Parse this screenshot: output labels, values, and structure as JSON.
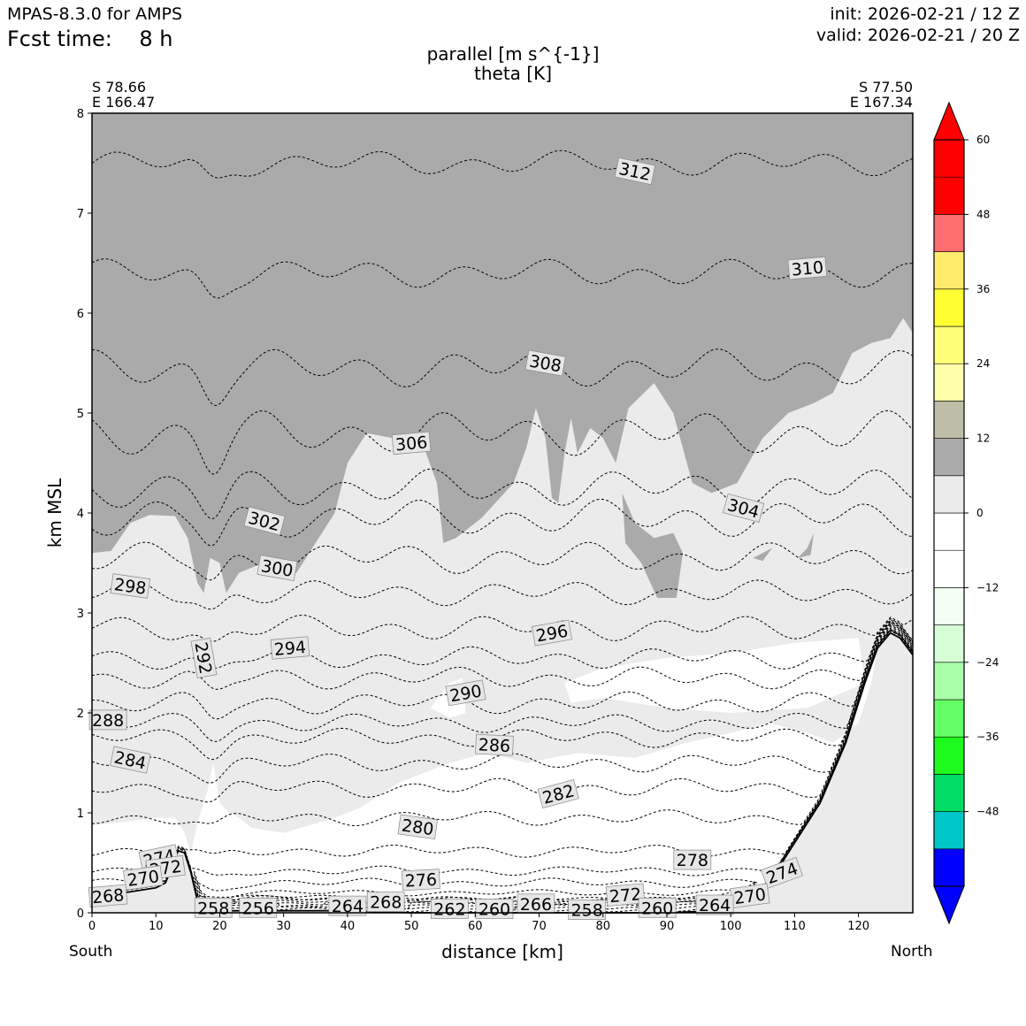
{
  "header": {
    "model": "MPAS-8.3.0 for AMPS",
    "fcst_time": "Fcst time:    8 h",
    "init": "init: 2026-02-21 / 12 Z",
    "valid": "valid: 2026-02-21 / 20 Z"
  },
  "chart_data": {
    "type": "contour",
    "title": "parallel [m s^{-1}]",
    "subtitle": "theta [K]",
    "xlabel": "distance [km]",
    "ylabel": "km MSL",
    "xlim": [
      0,
      128.5
    ],
    "ylim": [
      0,
      8
    ],
    "x_ticks": [
      0,
      10,
      20,
      30,
      40,
      50,
      60,
      70,
      80,
      90,
      100,
      110,
      120
    ],
    "y_ticks": [
      0,
      1,
      2,
      3,
      4,
      5,
      6,
      7,
      8
    ],
    "left_end": {
      "lat": "S 78.66",
      "lon": "E 166.47",
      "label": "South"
    },
    "right_end": {
      "lat": "S 77.50",
      "lon": "E 167.34",
      "label": "North"
    },
    "colorbar": {
      "bounds": [
        -60,
        -54,
        -48,
        -42,
        -36,
        -30,
        -24,
        -18,
        -12,
        -6,
        0,
        6,
        12,
        18,
        24,
        30,
        36,
        42,
        48,
        54,
        60
      ],
      "colors": [
        "#0000ff",
        "#00c8c8",
        "#00dc64",
        "#1efa1e",
        "#64ff64",
        "#aaffaa",
        "#d7ffd7",
        "#f3fff3",
        "#ffffff",
        "#ffffff",
        "#ebebeb",
        "#aaaaaa",
        "#bebea8",
        "#ffffaa",
        "#ffff78",
        "#ffff32",
        "#ffeb6e",
        "#ff6e6e",
        "#ff0000",
        "#ff0000"
      ],
      "extend_under": "#0000ff",
      "extend_over": "#ff0000",
      "tick_values": [
        -48,
        -36,
        -24,
        -12,
        0,
        12,
        24,
        36,
        48,
        60
      ],
      "tick_labels": [
        "−48",
        "−36",
        "−24",
        "−12",
        "0",
        "12",
        "24",
        "36",
        "48",
        "60"
      ]
    },
    "shading_colors": {
      "light": "#ebebeb",
      "dark": "#aaaaaa"
    },
    "theta_contours": [
      {
        "value": 312,
        "base": 7.5,
        "amp": 0.08,
        "label": "312",
        "lx": 85,
        "ly": 7.42,
        "rot": 12
      },
      {
        "value": 310,
        "base": 6.4,
        "amp": 0.09,
        "label": "310",
        "lx": 112,
        "ly": 6.45,
        "rot": -5
      },
      {
        "value": 308,
        "base": 5.45,
        "amp": 0.12,
        "label": "308",
        "lx": 71,
        "ly": 5.5,
        "rot": 10
      },
      {
        "value": 306,
        "base": 4.8,
        "amp": 0.14,
        "label": "306",
        "lx": 50,
        "ly": 4.7,
        "rot": -5
      },
      {
        "value": 304,
        "base": 4.25,
        "amp": 0.12,
        "label": "304",
        "lx": 102,
        "ly": 4.05,
        "rot": 15
      },
      {
        "value": 302,
        "base": 3.95,
        "amp": 0.12,
        "label": "302",
        "lx": 27,
        "ly": 3.92,
        "rot": 15
      },
      {
        "value": 300,
        "base": 3.55,
        "amp": 0.1,
        "label": "300",
        "lx": 29,
        "ly": 3.45,
        "rot": 10
      },
      {
        "value": 298,
        "base": 3.2,
        "amp": 0.08,
        "label": "298",
        "lx": 6,
        "ly": 3.27,
        "rot": 8
      },
      {
        "value": 296,
        "base": 2.85,
        "amp": 0.08,
        "label": "296",
        "lx": 72,
        "ly": 2.8,
        "rot": -10
      },
      {
        "value": 294,
        "base": 2.55,
        "amp": 0.07,
        "label": "294",
        "lx": 31,
        "ly": 2.65,
        "rot": -5
      },
      {
        "value": 292,
        "base": 2.35,
        "amp": 0.07,
        "label": "292",
        "lx": 17.5,
        "ly": 2.55,
        "rot": 80
      },
      {
        "value": 290,
        "base": 2.1,
        "amp": 0.07,
        "label": "290",
        "lx": 58.5,
        "ly": 2.2,
        "rot": -10
      },
      {
        "value": 288,
        "base": 1.9,
        "amp": 0.06,
        "label": "288",
        "lx": 2.5,
        "ly": 1.93,
        "rot": 0
      },
      {
        "value": 286,
        "base": 1.75,
        "amp": 0.06,
        "label": "286",
        "lx": 63,
        "ly": 1.68,
        "rot": 3
      },
      {
        "value": 284,
        "base": 1.5,
        "amp": 0.06,
        "label": "284",
        "lx": 6,
        "ly": 1.53,
        "rot": 12
      },
      {
        "value": 282,
        "base": 1.25,
        "amp": 0.06,
        "label": "282",
        "lx": 73,
        "ly": 1.19,
        "rot": -15
      },
      {
        "value": 280,
        "base": 0.95,
        "amp": 0.05,
        "label": "280",
        "lx": 51,
        "ly": 0.86,
        "rot": 8
      },
      {
        "value": 278,
        "base": 0.62,
        "amp": 0.04,
        "label": "278",
        "lx": 94,
        "ly": 0.53,
        "rot": 0
      },
      {
        "value": 276,
        "base": 0.42,
        "amp": 0.03,
        "label": "276",
        "lx": 51.5,
        "ly": 0.33,
        "rot": -3
      },
      {
        "value": 274,
        "base": 0.3,
        "amp": 0.03,
        "label": "274",
        "lx": 10.5,
        "ly": 0.55,
        "rot": -12
      },
      {
        "value": 272,
        "base": 0.2,
        "amp": 0.02,
        "label": "272",
        "lx": 11.5,
        "ly": 0.45,
        "rot": -8
      },
      {
        "value": 270,
        "base": 0.14,
        "amp": 0.02,
        "label": "270",
        "lx": 8,
        "ly": 0.35,
        "rot": -8
      },
      {
        "value": 268,
        "base": 0.1,
        "amp": 0.01,
        "label": "268",
        "lx": 2.5,
        "ly": 0.17,
        "rot": -5
      }
    ],
    "extra_contour_labels": [
      {
        "text": "274",
        "x": 108,
        "y": 0.4,
        "rot": -20
      },
      {
        "text": "272",
        "x": 83.5,
        "y": 0.18,
        "rot": -5
      },
      {
        "text": "270",
        "x": 103,
        "y": 0.17,
        "rot": -8
      },
      {
        "text": "268",
        "x": 46,
        "y": 0.11,
        "rot": 0
      },
      {
        "text": "266",
        "x": 69.5,
        "y": 0.09,
        "rot": 0
      },
      {
        "text": "264",
        "x": 40,
        "y": 0.07,
        "rot": 0
      },
      {
        "text": "264",
        "x": 97.5,
        "y": 0.08,
        "rot": 0
      },
      {
        "text": "262",
        "x": 56,
        "y": 0.04,
        "rot": 0
      },
      {
        "text": "260",
        "x": 63,
        "y": 0.04,
        "rot": 0
      },
      {
        "text": "260",
        "x": 88.5,
        "y": 0.05,
        "rot": 0
      },
      {
        "text": "258",
        "x": 19,
        "y": 0.05,
        "rot": 0
      },
      {
        "text": "258",
        "x": 77.5,
        "y": 0.03,
        "rot": 0
      },
      {
        "text": "256",
        "x": 26,
        "y": 0.05,
        "rot": 0
      }
    ],
    "terrain": [
      [
        0,
        0.18
      ],
      [
        5,
        0.2
      ],
      [
        10,
        0.25
      ],
      [
        11.5,
        0.3
      ],
      [
        12.5,
        0.45
      ],
      [
        13.5,
        0.62
      ],
      [
        14.5,
        0.6
      ],
      [
        15.5,
        0.4
      ],
      [
        16.5,
        0.12
      ],
      [
        17.5,
        0.02
      ],
      [
        22,
        0.02
      ],
      [
        30,
        0.02
      ],
      [
        40,
        0.02
      ],
      [
        50,
        0.0
      ],
      [
        60,
        0.0
      ],
      [
        70,
        0.0
      ],
      [
        80,
        0.0
      ],
      [
        90,
        0.0
      ],
      [
        98,
        0.02
      ],
      [
        102,
        0.08
      ],
      [
        106,
        0.3
      ],
      [
        110,
        0.7
      ],
      [
        114,
        1.1
      ],
      [
        118,
        1.7
      ],
      [
        121,
        2.3
      ],
      [
        123,
        2.65
      ],
      [
        125,
        2.8
      ],
      [
        126.5,
        2.75
      ],
      [
        128.5,
        2.58
      ]
    ],
    "dark_region": [
      [
        0,
        3.6
      ],
      [
        3,
        3.62
      ],
      [
        6,
        3.9
      ],
      [
        9,
        3.98
      ],
      [
        13,
        3.97
      ],
      [
        15,
        3.75
      ],
      [
        16.5,
        3.3
      ],
      [
        17.5,
        3.2
      ],
      [
        18.5,
        3.55
      ],
      [
        20,
        3.5
      ],
      [
        21,
        3.2
      ],
      [
        23,
        3.4
      ],
      [
        26,
        3.48
      ],
      [
        28,
        3.42
      ],
      [
        32,
        3.4
      ],
      [
        35,
        3.7
      ],
      [
        38,
        4.0
      ],
      [
        40,
        4.5
      ],
      [
        43,
        4.8
      ],
      [
        47,
        4.75
      ],
      [
        52,
        4.65
      ],
      [
        54,
        4.3
      ],
      [
        55,
        3.7
      ],
      [
        57,
        3.75
      ],
      [
        61,
        3.95
      ],
      [
        66,
        4.3
      ],
      [
        68,
        4.65
      ],
      [
        69.5,
        5.05
      ],
      [
        71,
        4.75
      ],
      [
        72,
        4.15
      ],
      [
        73,
        4.1
      ],
      [
        74,
        4.6
      ],
      [
        75,
        4.95
      ],
      [
        76,
        4.6
      ],
      [
        78,
        4.85
      ],
      [
        80,
        4.75
      ],
      [
        82,
        4.5
      ],
      [
        84,
        5.05
      ],
      [
        88,
        5.3
      ],
      [
        91,
        5.0
      ],
      [
        94,
        4.3
      ],
      [
        97,
        4.2
      ],
      [
        101,
        4.3
      ],
      [
        105,
        4.75
      ],
      [
        109,
        5.0
      ],
      [
        113,
        5.1
      ],
      [
        116,
        5.2
      ],
      [
        119,
        5.6
      ],
      [
        122,
        5.7
      ],
      [
        125,
        5.75
      ],
      [
        127,
        5.95
      ],
      [
        128.5,
        5.8
      ],
      [
        128.5,
        8
      ],
      [
        0,
        8
      ]
    ],
    "dark_patches": [
      [
        [
          83,
          4.2
        ],
        [
          85,
          3.9
        ],
        [
          88,
          3.75
        ],
        [
          91,
          3.8
        ],
        [
          92.5,
          3.6
        ],
        [
          91.5,
          3.15
        ],
        [
          88.5,
          3.15
        ],
        [
          86,
          3.5
        ],
        [
          83.5,
          3.7
        ]
      ],
      [
        [
          110.5,
          3.55
        ],
        [
          112,
          3.65
        ],
        [
          113,
          3.8
        ],
        [
          112.5,
          3.58
        ]
      ],
      [
        [
          103.5,
          3.55
        ],
        [
          106.5,
          3.65
        ],
        [
          105,
          3.52
        ]
      ]
    ],
    "white_regions": [
      [
        [
          0,
          0.18
        ],
        [
          0,
          0.88
        ],
        [
          4,
          0.9
        ],
        [
          10,
          0.95
        ],
        [
          13,
          0.95
        ],
        [
          14.5,
          0.8
        ],
        [
          15.5,
          0.6
        ],
        [
          16.5,
          0.9
        ],
        [
          18,
          1.2
        ],
        [
          19,
          1.5
        ],
        [
          20,
          1.1
        ],
        [
          21.5,
          1.0
        ],
        [
          23,
          0.95
        ],
        [
          25,
          0.85
        ],
        [
          30,
          0.8
        ],
        [
          38,
          0.95
        ],
        [
          42,
          1.05
        ],
        [
          48,
          1.3
        ],
        [
          56,
          1.5
        ],
        [
          62,
          1.6
        ],
        [
          68,
          1.5
        ],
        [
          76,
          1.6
        ],
        [
          85,
          1.55
        ],
        [
          93,
          1.7
        ],
        [
          100,
          1.8
        ],
        [
          106,
          1.9
        ],
        [
          112,
          1.8
        ],
        [
          116,
          1.7
        ],
        [
          120,
          1.9
        ],
        [
          122,
          2.3
        ],
        [
          123,
          2.65
        ],
        [
          121,
          2.3
        ],
        [
          118,
          1.7
        ],
        [
          114,
          1.1
        ],
        [
          110,
          0.7
        ],
        [
          106,
          0.3
        ],
        [
          102,
          0.08
        ],
        [
          98,
          0.02
        ],
        [
          90,
          0
        ],
        [
          50,
          0
        ],
        [
          17.5,
          0.02
        ],
        [
          16.5,
          0.12
        ],
        [
          15.5,
          0.4
        ],
        [
          14.5,
          0.6
        ],
        [
          13.5,
          0.62
        ],
        [
          12.5,
          0.45
        ],
        [
          11.5,
          0.3
        ],
        [
          10,
          0.25
        ],
        [
          5,
          0.2
        ]
      ],
      [
        [
          56,
          2.3
        ],
        [
          58,
          2.35
        ],
        [
          58.5,
          2.0
        ],
        [
          56,
          1.95
        ],
        [
          53,
          2.05
        ]
      ],
      [
        [
          74,
          2.3
        ],
        [
          80,
          2.45
        ],
        [
          90,
          2.55
        ],
        [
          100,
          2.6
        ],
        [
          110,
          2.7
        ],
        [
          120,
          2.75
        ],
        [
          121,
          2.3
        ],
        [
          112,
          2.05
        ],
        [
          100,
          2.0
        ],
        [
          90,
          2.05
        ],
        [
          80,
          2.15
        ],
        [
          75,
          2.1
        ]
      ]
    ]
  }
}
